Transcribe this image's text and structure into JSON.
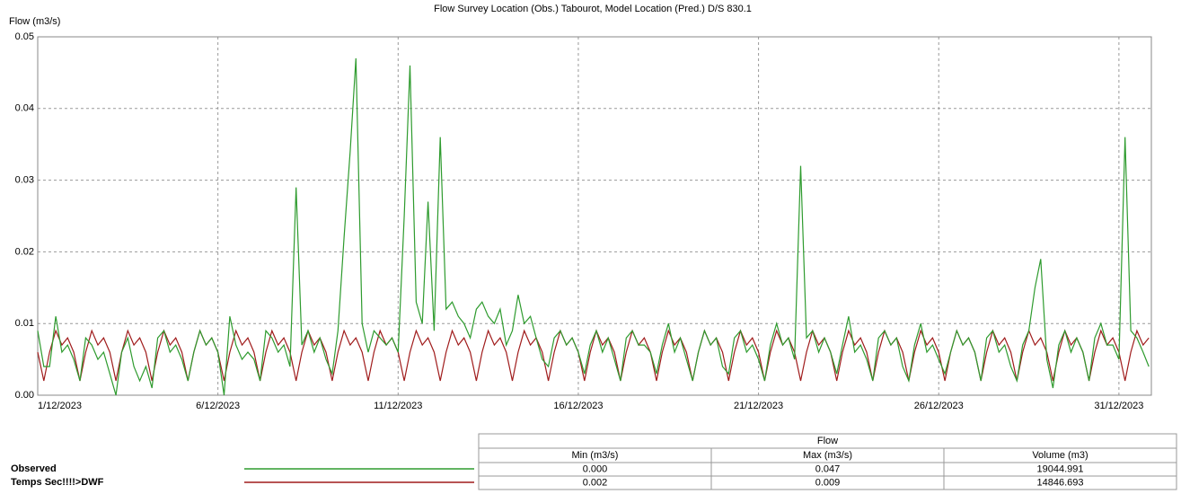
{
  "chart_data": {
    "type": "line",
    "title": "Flow Survey Location (Obs.) Tabourot, Model Location (Pred.) D/S 830.1",
    "ylabel": "Flow (m3/s)",
    "x": [
      0,
      0.17,
      0.33,
      0.5,
      0.67,
      0.83,
      1,
      1.17,
      1.33,
      1.5,
      1.67,
      1.83,
      2,
      2.17,
      2.33,
      2.5,
      2.67,
      2.83,
      3,
      3.17,
      3.33,
      3.5,
      3.67,
      3.83,
      4,
      4.17,
      4.33,
      4.5,
      4.67,
      4.83,
      5,
      5.17,
      5.33,
      5.5,
      5.67,
      5.83,
      6,
      6.17,
      6.33,
      6.5,
      6.67,
      6.83,
      7,
      7.17,
      7.33,
      7.5,
      7.67,
      7.83,
      8,
      8.17,
      8.33,
      8.5,
      8.67,
      8.83,
      9,
      9.17,
      9.33,
      9.5,
      9.67,
      9.83,
      10,
      10.17,
      10.33,
      10.5,
      10.67,
      10.83,
      11,
      11.17,
      11.33,
      11.5,
      11.67,
      11.83,
      12,
      12.17,
      12.33,
      12.5,
      12.67,
      12.83,
      13,
      13.17,
      13.33,
      13.5,
      13.67,
      13.83,
      14,
      14.17,
      14.33,
      14.5,
      14.67,
      14.83,
      15,
      15.17,
      15.33,
      15.5,
      15.67,
      15.83,
      16,
      16.17,
      16.33,
      16.5,
      16.67,
      16.83,
      17,
      17.17,
      17.33,
      17.5,
      17.67,
      17.83,
      18,
      18.17,
      18.33,
      18.5,
      18.67,
      18.83,
      19,
      19.17,
      19.33,
      19.5,
      19.67,
      19.83,
      20,
      20.17,
      20.33,
      20.5,
      20.67,
      20.83,
      21,
      21.17,
      21.33,
      21.5,
      21.67,
      21.83,
      22,
      22.17,
      22.33,
      22.5,
      22.67,
      22.83,
      23,
      23.17,
      23.33,
      23.5,
      23.67,
      23.83,
      24,
      24.17,
      24.33,
      24.5,
      24.67,
      24.83,
      25,
      25.17,
      25.33,
      25.5,
      25.67,
      25.83,
      26,
      26.17,
      26.33,
      26.5,
      26.67,
      26.83,
      27,
      27.17,
      27.33,
      27.5,
      27.67,
      27.83,
      28,
      28.17,
      28.33,
      28.5,
      28.67,
      28.83,
      29,
      29.17,
      29.33,
      29.5,
      29.67,
      29.83,
      30,
      30.17,
      30.33,
      30.5,
      30.67,
      30.83
    ],
    "series": [
      {
        "name": "Observed",
        "color": "#2e9b2e",
        "values": [
          0.009,
          0.004,
          0.004,
          0.011,
          0.006,
          0.007,
          0.005,
          0.002,
          0.008,
          0.007,
          0.005,
          0.006,
          0.003,
          0.0,
          0.006,
          0.008,
          0.004,
          0.002,
          0.004,
          0.001,
          0.008,
          0.009,
          0.006,
          0.007,
          0.005,
          0.002,
          0.006,
          0.009,
          0.007,
          0.008,
          0.006,
          0.0,
          0.011,
          0.007,
          0.005,
          0.006,
          0.005,
          0.002,
          0.009,
          0.008,
          0.006,
          0.007,
          0.004,
          0.029,
          0.007,
          0.009,
          0.006,
          0.008,
          0.005,
          0.003,
          0.009,
          0.022,
          0.034,
          0.047,
          0.01,
          0.006,
          0.009,
          0.008,
          0.007,
          0.008,
          0.006,
          0.025,
          0.046,
          0.013,
          0.01,
          0.027,
          0.009,
          0.036,
          0.012,
          0.013,
          0.011,
          0.01,
          0.008,
          0.012,
          0.013,
          0.011,
          0.01,
          0.012,
          0.007,
          0.009,
          0.014,
          0.01,
          0.011,
          0.008,
          0.005,
          0.004,
          0.008,
          0.009,
          0.007,
          0.008,
          0.006,
          0.003,
          0.007,
          0.009,
          0.006,
          0.008,
          0.005,
          0.002,
          0.008,
          0.009,
          0.007,
          0.007,
          0.006,
          0.003,
          0.007,
          0.01,
          0.006,
          0.008,
          0.005,
          0.002,
          0.006,
          0.009,
          0.007,
          0.008,
          0.004,
          0.003,
          0.008,
          0.009,
          0.006,
          0.007,
          0.005,
          0.002,
          0.007,
          0.01,
          0.007,
          0.008,
          0.005,
          0.032,
          0.008,
          0.009,
          0.006,
          0.008,
          0.006,
          0.003,
          0.007,
          0.011,
          0.006,
          0.007,
          0.005,
          0.002,
          0.008,
          0.009,
          0.007,
          0.008,
          0.004,
          0.002,
          0.007,
          0.01,
          0.006,
          0.007,
          0.005,
          0.003,
          0.006,
          0.009,
          0.007,
          0.008,
          0.006,
          0.002,
          0.008,
          0.009,
          0.006,
          0.007,
          0.004,
          0.002,
          0.007,
          0.009,
          0.015,
          0.019,
          0.005,
          0.001,
          0.007,
          0.009,
          0.006,
          0.008,
          0.006,
          0.002,
          0.008,
          0.01,
          0.007,
          0.007,
          0.005,
          0.036,
          0.009,
          0.008,
          0.006,
          0.004
        ]
      },
      {
        "name": "Temps Sec!!!!>DWF",
        "color": "#a01c1c",
        "values": [
          0.006,
          0.002,
          0.006,
          0.009,
          0.007,
          0.008,
          0.006,
          0.002,
          0.006,
          0.009,
          0.007,
          0.008,
          0.006,
          0.002,
          0.006,
          0.009,
          0.007,
          0.008,
          0.006,
          0.002,
          0.006,
          0.009,
          0.007,
          0.008,
          0.006,
          0.002,
          0.006,
          0.009,
          0.007,
          0.008,
          0.006,
          0.002,
          0.006,
          0.009,
          0.007,
          0.008,
          0.006,
          0.002,
          0.006,
          0.009,
          0.007,
          0.008,
          0.006,
          0.002,
          0.006,
          0.009,
          0.007,
          0.008,
          0.006,
          0.002,
          0.006,
          0.009,
          0.007,
          0.008,
          0.006,
          0.002,
          0.006,
          0.009,
          0.007,
          0.008,
          0.006,
          0.002,
          0.006,
          0.009,
          0.007,
          0.008,
          0.006,
          0.002,
          0.006,
          0.009,
          0.007,
          0.008,
          0.006,
          0.002,
          0.006,
          0.009,
          0.007,
          0.008,
          0.006,
          0.002,
          0.006,
          0.009,
          0.007,
          0.008,
          0.006,
          0.002,
          0.006,
          0.009,
          0.007,
          0.008,
          0.006,
          0.002,
          0.006,
          0.009,
          0.007,
          0.008,
          0.006,
          0.002,
          0.006,
          0.009,
          0.007,
          0.008,
          0.006,
          0.002,
          0.006,
          0.009,
          0.007,
          0.008,
          0.006,
          0.002,
          0.006,
          0.009,
          0.007,
          0.008,
          0.006,
          0.002,
          0.006,
          0.009,
          0.007,
          0.008,
          0.006,
          0.002,
          0.006,
          0.009,
          0.007,
          0.008,
          0.006,
          0.002,
          0.006,
          0.009,
          0.007,
          0.008,
          0.006,
          0.002,
          0.006,
          0.009,
          0.007,
          0.008,
          0.006,
          0.002,
          0.006,
          0.009,
          0.007,
          0.008,
          0.006,
          0.002,
          0.006,
          0.009,
          0.007,
          0.008,
          0.006,
          0.002,
          0.006,
          0.009,
          0.007,
          0.008,
          0.006,
          0.002,
          0.006,
          0.009,
          0.007,
          0.008,
          0.006,
          0.002,
          0.006,
          0.009,
          0.007,
          0.008,
          0.006,
          0.002,
          0.006,
          0.009,
          0.007,
          0.008,
          0.006,
          0.002,
          0.006,
          0.009,
          0.007,
          0.008,
          0.006,
          0.002,
          0.006,
          0.009,
          0.007,
          0.008
        ]
      }
    ],
    "xlim": [
      0,
      30.9
    ],
    "xticks": [
      {
        "value": 0,
        "label": "1/12/2023"
      },
      {
        "value": 5,
        "label": "6/12/2023"
      },
      {
        "value": 10,
        "label": "11/12/2023"
      },
      {
        "value": 15,
        "label": "16/12/2023"
      },
      {
        "value": 20,
        "label": "21/12/2023"
      },
      {
        "value": 25,
        "label": "26/12/2023"
      },
      {
        "value": 30,
        "label": "31/12/2023"
      }
    ],
    "ylim": [
      0,
      0.05
    ],
    "yticks": [
      {
        "value": 0,
        "label": "0.00"
      },
      0.01,
      0.02,
      0.03,
      0.04,
      0.05
    ],
    "grid": true
  },
  "table": {
    "header": "Flow",
    "columns": [
      "Min (m3/s)",
      "Max (m3/s)",
      "Volume (m3)"
    ],
    "rows": [
      [
        "0.000",
        "0.047",
        "19044.991"
      ],
      [
        "0.002",
        "0.009",
        "14846.693"
      ]
    ]
  }
}
